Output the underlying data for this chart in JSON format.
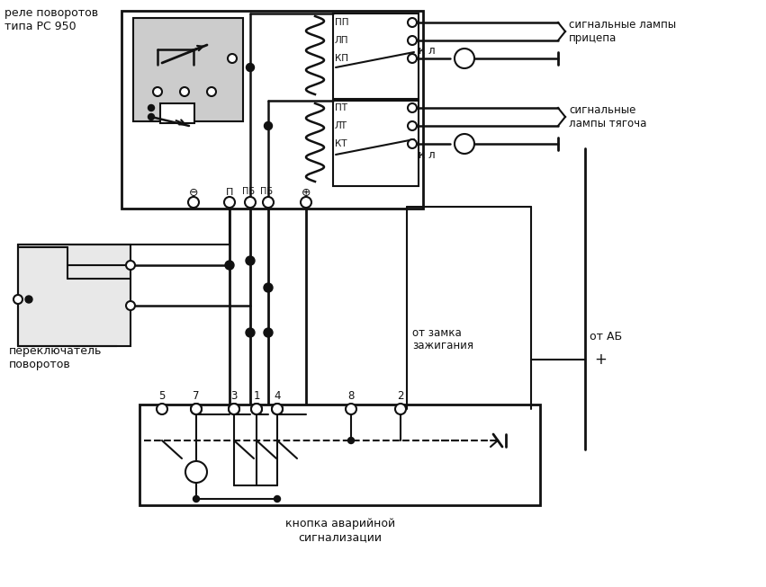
{
  "bg": "#f0f0f0",
  "lc": "#111111",
  "relay_label": "реле поворотов\nтипа РС 950",
  "turn_switch_label": "переключатель\nповоротов",
  "signal_trailer": "сигнальные лампы\nприцепа",
  "signal_tractor1": "сигнальные",
  "signal_tractor2": "лампы тягоча",
  "from_ignition1": "от замка",
  "from_ignition2": "зажигания",
  "from_battery": "от АБ",
  "plus": "+",
  "kl": "к л",
  "emergency_button": "кнопка аварийной\nсигнализации",
  "tr_labels": [
    "ПП",
    "ЛП",
    "КП",
    "ПТ",
    "ЛТ",
    "КТ"
  ],
  "btn_labels": [
    "5",
    "7",
    "3",
    "1",
    "4",
    "8",
    "2"
  ]
}
